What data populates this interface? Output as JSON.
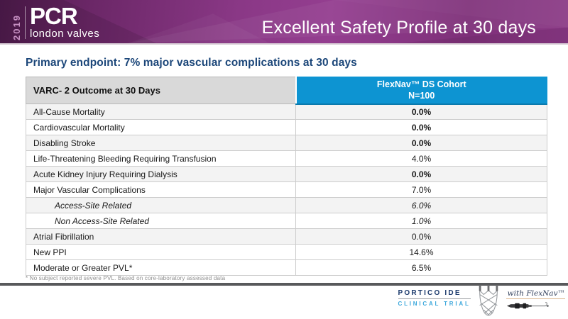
{
  "header": {
    "year": "2019",
    "brand": "PCR",
    "brand_sub": "london valves",
    "title": "Excellent Safety Profile at 30 days"
  },
  "subtitle": "Primary endpoint: 7% major vascular complications at 30 days",
  "table": {
    "col1_header": "VARC- 2 Outcome at 30 Days",
    "col2_header_line1": "FlexNav™ DS Cohort",
    "col2_header_line2": "N=100",
    "rows": [
      {
        "label": "All-Cause Mortality",
        "value": "0.0%",
        "bold": true
      },
      {
        "label": "Cardiovascular Mortality",
        "value": "0.0%",
        "bold": true
      },
      {
        "label": "Disabling Stroke",
        "value": "0.0%",
        "bold": true
      },
      {
        "label": "Life-Threatening Bleeding Requiring Transfusion",
        "value": "4.0%"
      },
      {
        "label": "Acute Kidney Injury Requiring Dialysis",
        "value": "0.0%",
        "bold": true
      },
      {
        "label": "Major Vascular Complications",
        "value": "7.0%"
      },
      {
        "label": "Access-Site Related",
        "value": "6.0%",
        "sub": true
      },
      {
        "label": "Non Access-Site Related",
        "value": "1.0%",
        "sub": true
      },
      {
        "label": "Atrial Fibrillation",
        "value": "0.0%"
      },
      {
        "label": "New PPI",
        "value": "14.6%"
      },
      {
        "label": "Moderate or Greater PVL*",
        "value": "6.5%"
      }
    ]
  },
  "footnote": "* No subject reported severe PVL. Based on core-laboratory assessed data",
  "footer": {
    "trial_name": "PORTICO IDE",
    "trial_sub": "CLINICAL TRIAL",
    "device_tag": "with FlexNav™"
  },
  "colors": {
    "header_purple": "#8A3886",
    "accent_blue": "#0D94D2",
    "navy": "#1B4679",
    "table_header_gray": "#D9D9D9",
    "bottom_bar_gray": "#58595B"
  }
}
